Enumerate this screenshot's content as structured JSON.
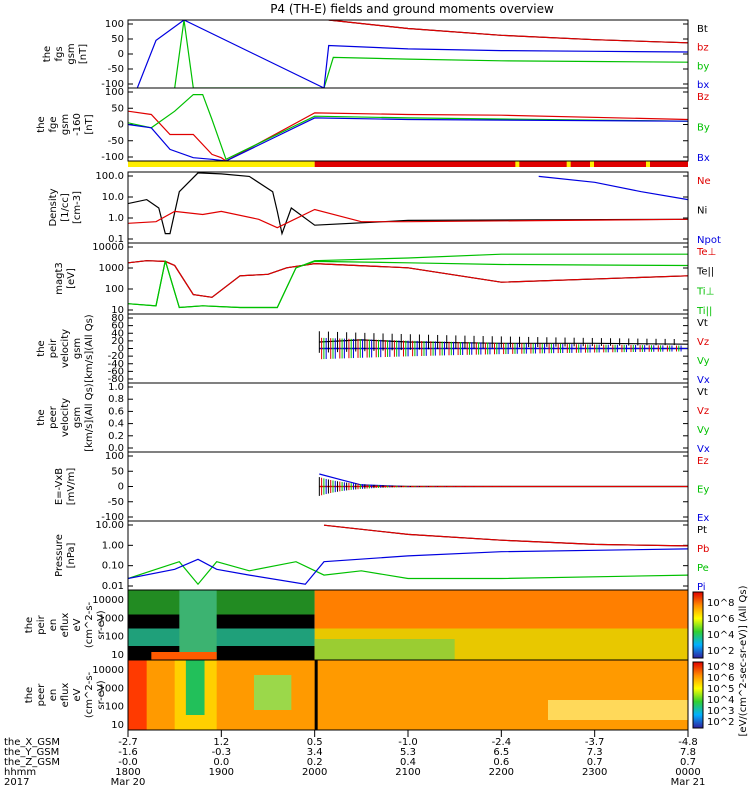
{
  "title": "P4 (TH-E) fields and ground moments overview",
  "time_axis": {
    "ticks": [
      {
        "hhmm": "1800",
        "x_gsm": "-2.7",
        "y_gsm": "-1.6",
        "z_gsm": "-0.0",
        "date": "Mar 20"
      },
      {
        "hhmm": "1900",
        "x_gsm": "1.2",
        "y_gsm": "-0.3",
        "z_gsm": "0.0",
        "date": ""
      },
      {
        "hhmm": "2000",
        "x_gsm": "0.5",
        "y_gsm": "3.4",
        "z_gsm": "0.2",
        "date": ""
      },
      {
        "hhmm": "2100",
        "x_gsm": "-1.0",
        "y_gsm": "5.3",
        "z_gsm": "0.4",
        "date": ""
      },
      {
        "hhmm": "2200",
        "x_gsm": "-2.4",
        "y_gsm": "6.5",
        "z_gsm": "0.6",
        "date": ""
      },
      {
        "hhmm": "2300",
        "x_gsm": "-3.7",
        "y_gsm": "7.3",
        "z_gsm": "0.7",
        "date": ""
      },
      {
        "hhmm": "0000",
        "x_gsm": "-4.8",
        "y_gsm": "7.8",
        "z_gsm": "0.7",
        "date": "Mar 21"
      }
    ],
    "row_labels": [
      "the_X_GSM",
      "the_Y_GSM",
      "the_Z_GSM",
      "hhmm",
      "2017"
    ]
  },
  "colorbar": {
    "label": "[eV/(cm^2-sec-sr-eV)] (All Qs)",
    "ticks_top": [
      "10^8",
      "10^6",
      "10^4",
      "10^2"
    ],
    "ticks_bottom": [
      "10^8",
      "10^6",
      "10^5",
      "10^4",
      "10^3",
      "10^2"
    ]
  },
  "panels": [
    {
      "id": "fgs",
      "ylabel": [
        "the",
        "fgs",
        "gsm",
        "[nT]"
      ],
      "ticks": [
        "100",
        "50",
        "0",
        "-50",
        "-100"
      ],
      "legend": [
        {
          "label": "Bt",
          "color": "#000000"
        },
        {
          "label": "bz",
          "color": "#e00000"
        },
        {
          "label": "by",
          "color": "#00c000"
        },
        {
          "label": "bx",
          "color": "#0000e0"
        }
      ]
    },
    {
      "id": "fge",
      "ylabel": [
        "the",
        "fge",
        "gsm",
        "-160",
        "[nT]"
      ],
      "ticks": [
        "100",
        "50",
        "0",
        "-50",
        "-100"
      ],
      "legend": [
        {
          "label": "Bz",
          "color": "#e00000"
        },
        {
          "label": "By",
          "color": "#00c000"
        },
        {
          "label": "Bx",
          "color": "#0000e0"
        }
      ]
    },
    {
      "id": "density",
      "ylabel": [
        "Density",
        "[1/cc]",
        "[cm-3]"
      ],
      "ticks": [
        "100.0",
        "10.0",
        "1.0",
        "0.1"
      ],
      "legend": [
        {
          "label": "Ne",
          "color": "#e00000"
        },
        {
          "label": "Ni",
          "color": "#000000"
        },
        {
          "label": "Npot",
          "color": "#0000e0"
        }
      ]
    },
    {
      "id": "temp",
      "ylabel": [
        "magt3",
        "[eV]"
      ],
      "ticks": [
        "10000",
        "1000",
        "100",
        "10"
      ],
      "legend": [
        {
          "label": "Te⊥",
          "color": "#e00000"
        },
        {
          "label": "Te||",
          "color": "#000000"
        },
        {
          "label": "Ti⊥",
          "color": "#00c000"
        },
        {
          "label": "Ti||",
          "color": "#00c000"
        }
      ]
    },
    {
      "id": "peir_vel",
      "ylabel": [
        "the",
        "peir",
        "velocity",
        "gsm",
        "[km/s](All Qs)"
      ],
      "ticks": [
        "80",
        "60",
        "40",
        "20",
        "0",
        "-20",
        "-40",
        "-60",
        "-80"
      ],
      "legend": [
        {
          "label": "Vt",
          "color": "#000000"
        },
        {
          "label": "Vz",
          "color": "#e00000"
        },
        {
          "label": "Vy",
          "color": "#00c000"
        },
        {
          "label": "Vx",
          "color": "#0000e0"
        }
      ]
    },
    {
      "id": "peer_vel",
      "ylabel": [
        "the",
        "peer",
        "velocity",
        "gsm",
        "[km/s](All Qs)"
      ],
      "ticks": [
        "1.0",
        "0.8",
        "0.6",
        "0.4",
        "0.2",
        "0.0"
      ],
      "legend": [
        {
          "label": "Vt",
          "color": "#000000"
        },
        {
          "label": "Vz",
          "color": "#e00000"
        },
        {
          "label": "Vy",
          "color": "#00c000"
        },
        {
          "label": "Vx",
          "color": "#0000e0"
        }
      ]
    },
    {
      "id": "efield",
      "ylabel": [
        "E=-VxB",
        "[mV/m]"
      ],
      "ticks": [
        "100",
        "50",
        "0",
        "-50",
        "-100"
      ],
      "legend": [
        {
          "label": "Ez",
          "color": "#e00000"
        },
        {
          "label": "Ey",
          "color": "#00c000"
        },
        {
          "label": "Ex",
          "color": "#0000e0"
        }
      ]
    },
    {
      "id": "pressure",
      "ylabel": [
        "Pressure",
        "[nPa]"
      ],
      "ticks": [
        "10.00",
        "1.00",
        "0.10",
        "0.01"
      ],
      "legend": [
        {
          "label": "Pt",
          "color": "#000000"
        },
        {
          "label": "Pb",
          "color": "#e00000"
        },
        {
          "label": "Pe",
          "color": "#00c000"
        },
        {
          "label": "Pi",
          "color": "#0000e0"
        }
      ]
    },
    {
      "id": "peir_spec",
      "ylabel": [
        "the",
        "peir",
        "en",
        "eflux",
        "eV",
        "(cm^2-s-",
        "sr-eV)"
      ],
      "ticks": [
        "10000",
        "1000",
        "100",
        "10"
      ],
      "legend": []
    },
    {
      "id": "peer_spec",
      "ylabel": [
        "the",
        "peer",
        "en",
        "eflux",
        "eV",
        "(cm^2-s-",
        "sr-eV)"
      ],
      "ticks": [
        "10000",
        "1000",
        "100",
        "10"
      ],
      "legend": []
    }
  ],
  "chart_data": {
    "type": "line",
    "title": "P4 (TH-E) fields and ground moments overview",
    "x": [
      "18:00",
      "19:00",
      "20:00",
      "21:00",
      "22:00",
      "23:00",
      "00:00"
    ],
    "panels": [
      {
        "name": "fgs gsm [nT]",
        "ylim": [
          -100,
          100
        ],
        "series": [
          {
            "name": "Bt",
            "x": [
              2.15,
              3,
              4,
              5,
              6
            ],
            "values": [
              100,
              75,
              55,
              42,
              33
            ]
          },
          {
            "name": "bz",
            "x": [
              2.15,
              3,
              4,
              5,
              6
            ],
            "values": [
              100,
              75,
              55,
              42,
              33
            ]
          },
          {
            "name": "by",
            "x": [
              0.5,
              0.6,
              0.7,
              2.1,
              2.2,
              3,
              4,
              5,
              6
            ],
            "values": [
              -100,
              100,
              -100,
              -100,
              -10,
              -15,
              -20,
              -22,
              -24
            ],
            "note": "steep traces through 0.6-0.9"
          },
          {
            "name": "bx",
            "x": [
              0.1,
              0.3,
              0.6,
              2.1,
              2.15,
              3,
              4,
              5,
              6
            ],
            "values": [
              -100,
              40,
              100,
              -100,
              25,
              15,
              10,
              8,
              6
            ]
          }
        ]
      },
      {
        "name": "fge gsm -160 [nT]",
        "ylim": [
          -120,
          100
        ],
        "series": [
          {
            "name": "Bz",
            "x": [
              0,
              0.25,
              0.45,
              0.7,
              0.9,
              1.0,
              1.05,
              2.0,
              3,
              4,
              6
            ],
            "values": [
              30,
              20,
              -40,
              -40,
              -100,
              -110,
              -120,
              25,
              20,
              18,
              5
            ],
            "note": "scatter near 0.45-0.9"
          },
          {
            "name": "By",
            "x": [
              0,
              0.25,
              0.5,
              0.7,
              0.8,
              0.9,
              1.05,
              2.0,
              3,
              6
            ],
            "values": [
              -5,
              -20,
              30,
              80,
              80,
              5,
              -115,
              15,
              10,
              0
            ]
          },
          {
            "name": "Bx",
            "x": [
              0,
              0.25,
              0.45,
              0.7,
              0.9,
              1.05,
              2.0,
              3,
              6
            ],
            "values": [
              -10,
              -20,
              -85,
              -110,
              -115,
              -120,
              10,
              5,
              0
            ]
          }
        ]
      },
      {
        "name": "Density [cm-3]",
        "scale": "log",
        "ylim": [
          0.05,
          200
        ],
        "series": [
          {
            "name": "Ni",
            "x": [
              0,
              0.2,
              0.33,
              0.4,
              0.45,
              0.55,
              0.75,
              1.0,
              1.3,
              1.55,
              1.6,
              1.65,
              1.75,
              2.0,
              3,
              6
            ],
            "values": [
              5,
              8,
              3,
              0.15,
              0.15,
              20,
              180,
              160,
              120,
              20,
              2,
              0.15,
              3,
              0.4,
              0.7,
              0.8
            ]
          },
          {
            "name": "Ne",
            "x": [
              0,
              0.3,
              0.5,
              0.8,
              1.0,
              1.4,
              1.6,
              2.0,
              2.5,
              3,
              6
            ],
            "values": [
              0.5,
              0.6,
              2,
              1.4,
              2,
              0.8,
              0.3,
              2.5,
              0.6,
              0.6,
              0.8
            ]
          },
          {
            "name": "Npot",
            "x": [
              4.4,
              5,
              5.5,
              6
            ],
            "values": [
              120,
              60,
              20,
              8
            ]
          }
        ]
      },
      {
        "name": "magt3 [eV]",
        "scale": "log",
        "ylim": [
          5,
          10000
        ],
        "series": [
          {
            "name": "Te||",
            "x": [
              0,
              0.2,
              0.4,
              0.5,
              0.7,
              0.9,
              1.2,
              1.5,
              1.7,
              2.0,
              3,
              4,
              6
            ],
            "values": [
              1200,
              1500,
              1400,
              900,
              40,
              30,
              300,
              350,
              700,
              1100,
              700,
              150,
              300
            ]
          },
          {
            "name": "Te⊥",
            "x": [
              0,
              0.2,
              0.4,
              0.5,
              0.7,
              0.9,
              1.2,
              1.5,
              1.7,
              2.0,
              3,
              4,
              6
            ],
            "values": [
              1200,
              1500,
              1400,
              900,
              40,
              30,
              300,
              350,
              700,
              1100,
              700,
              150,
              300
            ]
          },
          {
            "name": "Ti⊥",
            "x": [
              0,
              0.3,
              0.4,
              0.55,
              0.8,
              1.2,
              1.6,
              1.8,
              2.0,
              3,
              4,
              6
            ],
            "values": [
              15,
              12,
              1500,
              10,
              12,
              10,
              10,
              700,
              1400,
              1200,
              1000,
              900
            ]
          },
          {
            "name": "Ti||",
            "x": [
              0,
              0.3,
              0.4,
              0.55,
              0.8,
              1.2,
              1.6,
              1.8,
              2.0,
              3,
              4,
              6
            ],
            "values": [
              15,
              12,
              1500,
              10,
              12,
              10,
              10,
              700,
              1500,
              2000,
              3000,
              3000
            ]
          }
        ]
      },
      {
        "name": "peir velocity gsm [km/s]",
        "ylim": [
          -80,
          80
        ],
        "series": [
          {
            "name": "Vt",
            "x": [
              2.05,
              2.5,
              3,
              4,
              5,
              6
            ],
            "values": [
              15,
              20,
              15,
              12,
              12,
              10
            ],
            "note": "noisy 2.05-6"
          },
          {
            "name": "Vz",
            "x": [
              2.05,
              3,
              6
            ],
            "values": [
              0,
              0,
              0
            ]
          },
          {
            "name": "Vy",
            "x": [
              2.05,
              3,
              6
            ],
            "values": [
              0,
              0,
              0
            ]
          },
          {
            "name": "Vx",
            "x": [
              2.05,
              3,
              6
            ],
            "values": [
              0,
              0,
              0
            ]
          }
        ]
      },
      {
        "name": "peer velocity gsm [km/s]",
        "ylim": [
          0,
          1
        ],
        "series": []
      },
      {
        "name": "E=-VxB [mV/m]",
        "ylim": [
          -110,
          110
        ],
        "series": [
          {
            "name": "Ex",
            "x": [
              2.05,
              2.3,
              2.5,
              3,
              6
            ],
            "values": [
              40,
              20,
              5,
              0,
              0
            ]
          },
          {
            "name": "Ey",
            "x": [
              2.05,
              2.5,
              3,
              6
            ],
            "values": [
              0,
              0,
              0,
              0
            ]
          },
          {
            "name": "Ez",
            "x": [
              2.05,
              2.5,
              3,
              6
            ],
            "values": [
              0,
              0,
              0,
              0
            ]
          }
        ]
      },
      {
        "name": "Pressure [nPa]",
        "scale": "log",
        "ylim": [
          0.005,
          20
        ],
        "series": [
          {
            "name": "Pt",
            "x": [
              2.1,
              3,
              4,
              5,
              6
            ],
            "values": [
              12,
              4,
              2,
              1.2,
              1
            ]
          },
          {
            "name": "Pb",
            "x": [
              2.1,
              3,
              4,
              5,
              6
            ],
            "values": [
              12,
              4,
              2,
              1.2,
              1
            ]
          },
          {
            "name": "Pe",
            "x": [
              0,
              0.3,
              0.55,
              0.75,
              0.95,
              1.3,
              1.8,
              2.1,
              2.5,
              3,
              4,
              6
            ],
            "values": [
              0.02,
              0.06,
              0.15,
              0.01,
              0.15,
              0.05,
              0.15,
              0.03,
              0.05,
              0.02,
              0.02,
              0.03
            ]
          },
          {
            "name": "Pi",
            "x": [
              0,
              0.5,
              0.75,
              0.95,
              1.3,
              1.9,
              2.1,
              3,
              4,
              6
            ],
            "values": [
              0.02,
              0.06,
              0.2,
              0.06,
              0.03,
              0.01,
              0.15,
              0.3,
              0.5,
              0.7
            ]
          }
        ]
      }
    ]
  }
}
